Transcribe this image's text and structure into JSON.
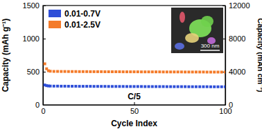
{
  "chart_data": {
    "type": "scatter",
    "x_label": "Cycle Index",
    "y_label": "Capacity (mAh g⁻¹)",
    "y2_label": "Capacity (mAh cm⁻³)",
    "annotations": [
      "C/5",
      "300 nm"
    ],
    "x": [
      1,
      2,
      3,
      4,
      6,
      8,
      10,
      12,
      14,
      16,
      18,
      20,
      22,
      24,
      26,
      28,
      30,
      32,
      34,
      36,
      38,
      40,
      42,
      44,
      46,
      48,
      50,
      52,
      54,
      56,
      58,
      60,
      62,
      64,
      66,
      68,
      70,
      72,
      74,
      76,
      78,
      80,
      82,
      84,
      86,
      88,
      90,
      92,
      94,
      96,
      98,
      100
    ],
    "series": [
      {
        "name": "0.01-0.7V",
        "color": "#2f4fd8",
        "marker": "square",
        "values": [
          300,
          290,
          286,
          284,
          283,
          283,
          282,
          282,
          281,
          281,
          281,
          280,
          280,
          280,
          280,
          279,
          279,
          279,
          279,
          278,
          278,
          278,
          278,
          278,
          277,
          277,
          277,
          277,
          277,
          276,
          276,
          276,
          276,
          276,
          276,
          275,
          275,
          275,
          275,
          275,
          275,
          274,
          274,
          274,
          274,
          274,
          274,
          273,
          273,
          273,
          273,
          273
        ]
      },
      {
        "name": "0.01-2.5V",
        "color": "#f47b2a",
        "marker": "square",
        "values": [
          620,
          545,
          515,
          508,
          505,
          505,
          504,
          504,
          503,
          503,
          503,
          502,
          502,
          502,
          501,
          501,
          501,
          501,
          500,
          500,
          500,
          500,
          500,
          499,
          499,
          499,
          499,
          499,
          498,
          498,
          498,
          498,
          498,
          498,
          497,
          497,
          497,
          497,
          497,
          497,
          496,
          496,
          496,
          496,
          496,
          496,
          495,
          495,
          495,
          495,
          495,
          495
        ]
      }
    ],
    "xlim": [
      0,
      100
    ],
    "xticks": [
      0,
      50,
      100
    ],
    "ylim": [
      0,
      1500
    ],
    "yticks": [
      0,
      500,
      1000,
      1500
    ],
    "y2lim": [
      0,
      12000
    ],
    "y2ticks": [
      0,
      4000,
      8000,
      12000
    ],
    "legend": "top-left"
  }
}
